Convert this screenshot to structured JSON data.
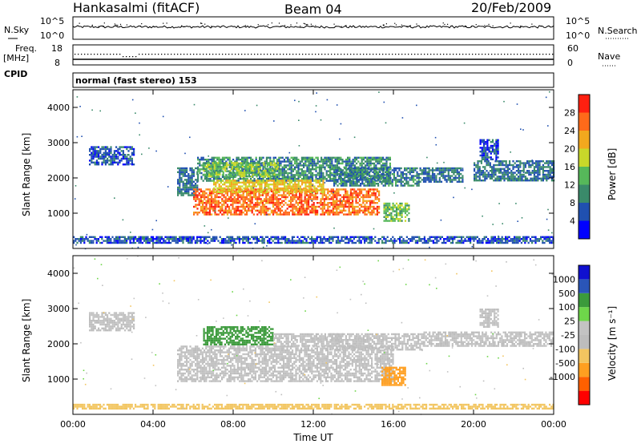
{
  "header": {
    "station": "Hankasalmi (fitACF)",
    "beam": "Beam 04",
    "date": "20/Feb/2009"
  },
  "noise_panel": {
    "left_label": "N.Sky",
    "left_ticks": [
      "10^5",
      "10^0"
    ],
    "right_label": "N.Search",
    "right_ticks": [
      "10^5",
      "10^0"
    ],
    "series": [
      {
        "name": "N.Sky",
        "style": "solid"
      },
      {
        "name": "N.Search",
        "style": "dotted"
      }
    ]
  },
  "freq_panel": {
    "left_label_line1": "Freq.",
    "left_label_line2": "[MHz]",
    "left_ticks": [
      "18",
      "8"
    ],
    "right_label": "Nave",
    "right_ticks": [
      "60",
      "0"
    ],
    "cpid_label": "CPID"
  },
  "cpid_text": "normal (fast stereo) 153",
  "colors": {
    "power_scale": [
      "#0000ff",
      "#2050b0",
      "#3a8a6a",
      "#56b85a",
      "#c8d82a",
      "#f2a81e",
      "#ff6a1a",
      "#ff2010"
    ],
    "velocity_scale": [
      "#ff0000",
      "#ff6000",
      "#ff9f20",
      "#f2c560",
      "#bdbdbd",
      "#c3c3c3",
      "#6ed64a",
      "#3b9a3b",
      "#2a55b8",
      "#1010d0"
    ]
  },
  "chart_data": [
    {
      "type": "heatmap",
      "quantity": "power",
      "ylabel": "Slant Range [km]",
      "yticks": [
        1000,
        2000,
        3000,
        4000
      ],
      "ylim": [
        0,
        4500
      ],
      "xlim": [
        0,
        24
      ],
      "colorbar_label": "Power [dB]",
      "colorbar_ticks": [
        "4",
        "8",
        "12",
        "16",
        "20",
        "24",
        "28"
      ],
      "colorbar_range": [
        0,
        32
      ],
      "regions": [
        {
          "t0": 0.8,
          "t1": 3.0,
          "r0": 2400,
          "r1": 2900,
          "level": 6
        },
        {
          "t0": 5.2,
          "t1": 6.2,
          "r0": 1500,
          "r1": 2300,
          "level": 8
        },
        {
          "t0": 6.2,
          "t1": 15.8,
          "r0": 1900,
          "r1": 2600,
          "level": 10
        },
        {
          "t0": 6.5,
          "t1": 10.2,
          "r0": 2050,
          "r1": 2450,
          "level": 15
        },
        {
          "t0": 6.0,
          "t1": 15.3,
          "r0": 950,
          "r1": 1700,
          "level": 26
        },
        {
          "t0": 7.0,
          "t1": 12.5,
          "r0": 1600,
          "r1": 1950,
          "level": 20
        },
        {
          "t0": 15.5,
          "t1": 16.8,
          "r0": 800,
          "r1": 1300,
          "level": 14
        },
        {
          "t0": 13.0,
          "t1": 17.3,
          "r0": 1800,
          "r1": 2300,
          "level": 9
        },
        {
          "t0": 17.3,
          "t1": 19.5,
          "r0": 1900,
          "r1": 2300,
          "level": 8
        },
        {
          "t0": 20.0,
          "t1": 24.0,
          "r0": 1950,
          "r1": 2500,
          "level": 8
        },
        {
          "t0": 20.3,
          "t1": 21.2,
          "r0": 2500,
          "r1": 3100,
          "level": 6
        },
        {
          "t0": 0.0,
          "t1": 24.0,
          "r0": 150,
          "r1": 350,
          "level": 6
        }
      ]
    },
    {
      "type": "heatmap",
      "quantity": "velocity",
      "ylabel": "Slant Range [km]",
      "yticks": [
        1000,
        2000,
        3000,
        4000
      ],
      "ylim": [
        0,
        4500
      ],
      "xlim": [
        0,
        24
      ],
      "xlabel": "Time UT",
      "xticks": [
        "00:00",
        "04:00",
        "08:00",
        "12:00",
        "16:00",
        "20:00",
        "00:00"
      ],
      "colorbar_label": "Velocity [m s⁻¹]",
      "colorbar_ticks": [
        "1000",
        "500",
        "100",
        "25",
        "-25",
        "-100",
        "-500",
        "-1000"
      ],
      "regions": [
        {
          "t0": 0.8,
          "t1": 3.0,
          "r0": 2400,
          "r1": 2900,
          "velocity": 0
        },
        {
          "t0": 5.2,
          "t1": 16.0,
          "r0": 950,
          "r1": 1950,
          "velocity": 0
        },
        {
          "t0": 6.5,
          "t1": 10.0,
          "r0": 2000,
          "r1": 2500,
          "velocity": 150
        },
        {
          "t0": 10.0,
          "t1": 13.5,
          "r0": 1950,
          "r1": 2300,
          "velocity": 0
        },
        {
          "t0": 15.4,
          "t1": 16.6,
          "r0": 850,
          "r1": 1350,
          "velocity": -400
        },
        {
          "t0": 12.8,
          "t1": 17.5,
          "r0": 1850,
          "r1": 2300,
          "velocity": 0
        },
        {
          "t0": 17.5,
          "t1": 24.0,
          "r0": 1950,
          "r1": 2350,
          "velocity": 0
        },
        {
          "t0": 20.3,
          "t1": 21.2,
          "r0": 2500,
          "r1": 3000,
          "velocity": 0
        },
        {
          "t0": 0.0,
          "t1": 24.0,
          "r0": 150,
          "r1": 300,
          "velocity": -60
        }
      ]
    }
  ]
}
